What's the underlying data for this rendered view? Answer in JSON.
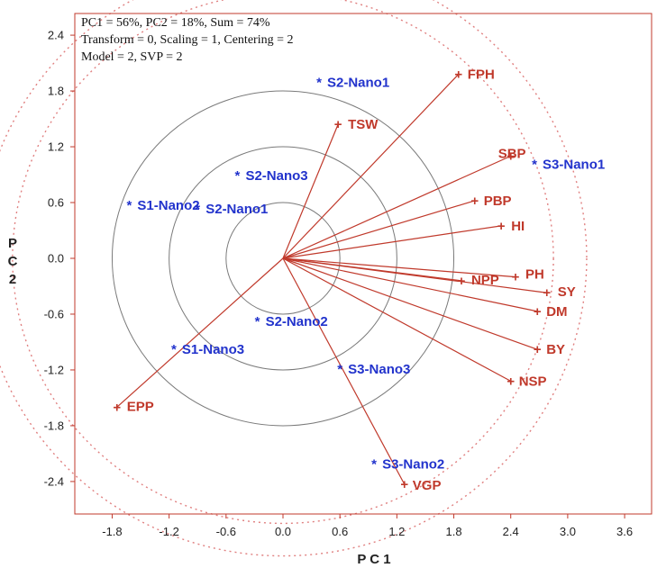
{
  "colors": {
    "frame": "#c0392b",
    "vector": "#c0392b",
    "vector_label": "#c0392b",
    "observation_label": "#2233cc",
    "inner_circle": "#7a7a7a",
    "outer_circle": "#e08080",
    "tick_text": "#222222"
  },
  "chart_data": {
    "type": "scatter",
    "subtype": "pca-biplot",
    "info_lines": [
      "PC1 = 56%, PC2 = 18%, Sum = 74%",
      "Transform = 0, Scaling = 1, Centering = 2",
      "Model = 2, SVP = 2"
    ],
    "xlabel": "P C 1",
    "ylabel": [
      "P",
      "C",
      "2"
    ],
    "xlim": [
      -2.1,
      4.0
    ],
    "ylim": [
      -2.7,
      2.55
    ],
    "xticks": [
      "-1.8",
      "-1.2",
      "-0.6",
      "0.0",
      "0.6",
      "1.2",
      "1.8",
      "2.4",
      "3.0",
      "3.6"
    ],
    "yticks": [
      "2.4",
      "1.8",
      "1.2",
      "0.6",
      "0.0",
      "-0.6",
      "-1.2",
      "-1.8",
      "-2.4"
    ],
    "grid": false,
    "circles_inner": [
      0.6,
      1.2,
      1.8
    ],
    "circles_outer": [
      2.85,
      3.2
    ],
    "variables": [
      {
        "name": "FPH",
        "x": 1.85,
        "y": 1.98
      },
      {
        "name": "TSW",
        "x": 0.58,
        "y": 1.44
      },
      {
        "name": "SBP",
        "x": 2.4,
        "y": 1.1
      },
      {
        "name": "PBP",
        "x": 2.02,
        "y": 0.62
      },
      {
        "name": "HI",
        "x": 2.3,
        "y": 0.35
      },
      {
        "name": "NPP",
        "x": 1.88,
        "y": -0.24
      },
      {
        "name": "PH",
        "x": 2.45,
        "y": -0.2
      },
      {
        "name": "SY",
        "x": 2.78,
        "y": -0.37
      },
      {
        "name": "DM",
        "x": 2.68,
        "y": -0.57
      },
      {
        "name": "BY",
        "x": 2.68,
        "y": -0.98
      },
      {
        "name": "NSP",
        "x": 2.4,
        "y": -1.32
      },
      {
        "name": "VGP",
        "x": 1.28,
        "y": -2.43
      },
      {
        "name": "EPP",
        "x": -1.75,
        "y": -1.6
      }
    ],
    "observations": [
      {
        "name": "S2-Nano1",
        "x": 0.38,
        "y": 1.9
      },
      {
        "name": "S3-Nano1",
        "x": 2.65,
        "y": 1.02
      },
      {
        "name": "S2-Nano3",
        "x": -0.48,
        "y": 0.9
      },
      {
        "name": "S1-Nano2",
        "x": -1.62,
        "y": 0.58
      },
      {
        "name": "S2-Nano1",
        "x": -0.9,
        "y": 0.54
      },
      {
        "name": "S2-Nano2",
        "x": -0.27,
        "y": -0.67
      },
      {
        "name": "S1-Nano3",
        "x": -1.15,
        "y": -0.97
      },
      {
        "name": "S3-Nano3",
        "x": 0.6,
        "y": -1.18
      },
      {
        "name": "S3-Nano2",
        "x": 0.96,
        "y": -2.2
      }
    ]
  }
}
